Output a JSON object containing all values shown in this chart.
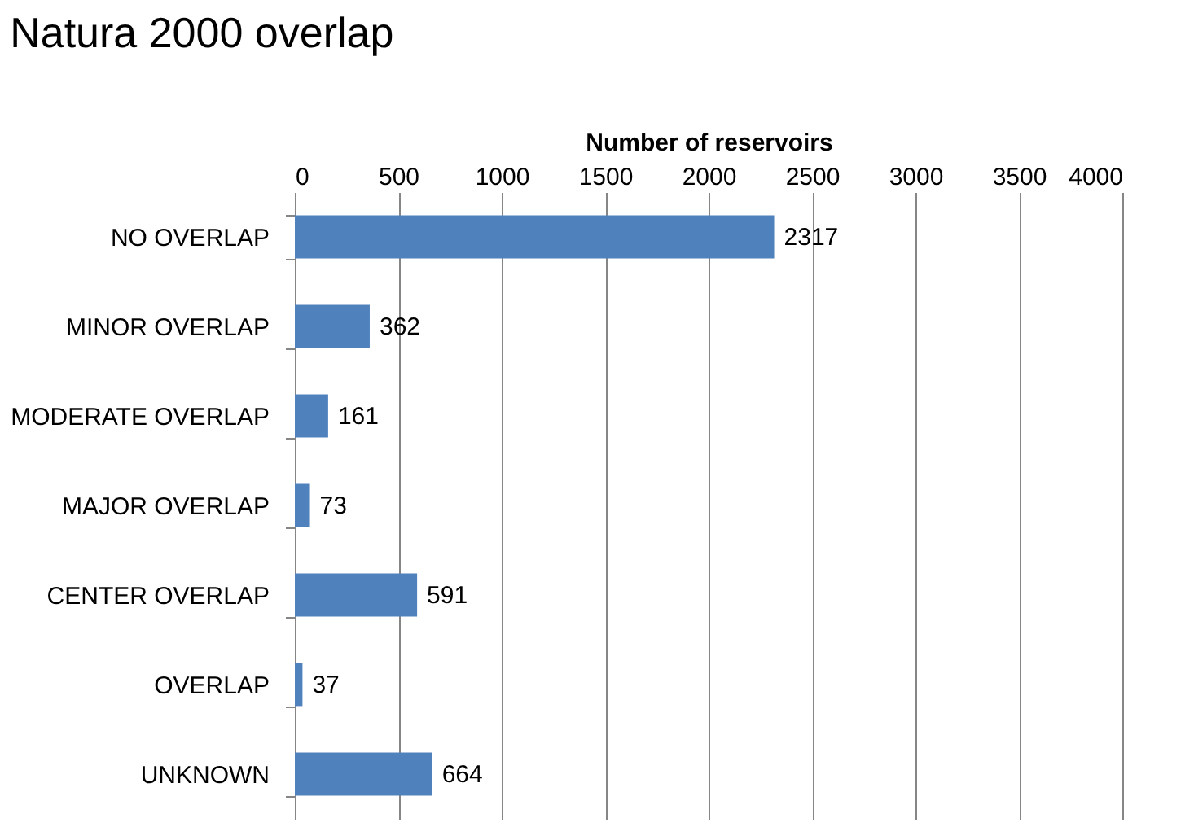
{
  "chart_data": {
    "type": "bar",
    "orientation": "horizontal",
    "title": "Natura 2000 overlap",
    "xlabel": "Number of reservoirs",
    "categories": [
      "NO OVERLAP",
      "MINOR OVERLAP",
      "MODERATE OVERLAP",
      "MAJOR OVERLAP",
      "CENTER OVERLAP",
      "OVERLAP",
      "UNKNOWN"
    ],
    "values": [
      2317,
      362,
      161,
      73,
      591,
      37,
      664
    ],
    "color": "#4f81bd",
    "xlim": [
      0,
      4000
    ],
    "xticks": [
      0,
      500,
      1000,
      1500,
      2000,
      2500,
      3000,
      3500,
      4000
    ],
    "grid": "x",
    "data_labels": true
  }
}
